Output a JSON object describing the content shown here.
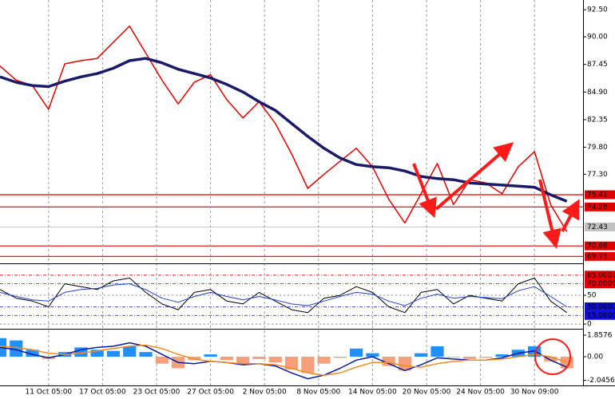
{
  "chart_data": [
    {
      "type": "line",
      "xlim": [
        -0.9,
        9.9
      ],
      "ylim": [
        69.07,
        93.4
      ],
      "x": [
        -0.9,
        -0.6,
        -0.3,
        0.0,
        0.3,
        0.6,
        0.9,
        1.2,
        1.5,
        1.8,
        2.1,
        2.4,
        2.7,
        3.0,
        3.3,
        3.6,
        3.9,
        4.2,
        4.5,
        4.8,
        5.1,
        5.4,
        5.7,
        6.0,
        6.3,
        6.6,
        6.9,
        7.2,
        7.5,
        7.8,
        8.1,
        8.4,
        8.7,
        9.0,
        9.3,
        9.6
      ],
      "yticks": [
        {
          "value": 92.5,
          "label": "92.50"
        },
        {
          "value": 90,
          "label": "90.00"
        },
        87.45,
        {
          "value": 84.9,
          "label": "84.90"
        },
        82.35,
        {
          "value": 79.8,
          "label": "79.80"
        },
        {
          "value": 77.3,
          "label": "77.30"
        }
      ],
      "levels": [
        {
          "value": 75.41,
          "color": "#e00000",
          "text_color": "#ffffff"
        },
        {
          "value": 74.28,
          "color": "#e00000",
          "text_color": "#ffffff"
        },
        {
          "value": 72.43,
          "color": "#c0c0c0",
          "text_color": "#000000"
        },
        {
          "value": 70.68,
          "color": "#e00000",
          "text_color": "#ffffff"
        },
        {
          "value": 69.71,
          "color": "#e00000",
          "text_color": "#ffffff"
        }
      ],
      "series": [
        {
          "color": "#e00000",
          "width": 1.5,
          "values": [
            87.3,
            86.0,
            85.5,
            83.3,
            87.5,
            87.8,
            88.0,
            89.5,
            91.0,
            88.5,
            86.0,
            83.8,
            85.8,
            86.5,
            84.2,
            82.5,
            84.0,
            82.0,
            79.2,
            76.0,
            77.3,
            78.5,
            79.7,
            78.0,
            75.0,
            72.8,
            75.5,
            78.3,
            74.5,
            76.8,
            76.5,
            75.5,
            78.0,
            79.4,
            74.5,
            72.0
          ]
        },
        {
          "color": "#1a1a66",
          "width": 3.5,
          "values": [
            86.3,
            85.8,
            85.5,
            85.4,
            85.9,
            86.3,
            86.6,
            87.1,
            87.8,
            88.0,
            87.6,
            87.0,
            86.6,
            86.2,
            85.6,
            84.9,
            84.0,
            83.2,
            82.0,
            80.8,
            79.7,
            78.8,
            78.2,
            78.0,
            77.9,
            77.6,
            77.1,
            76.9,
            76.8,
            76.5,
            76.4,
            76.3,
            76.2,
            76.1,
            75.4,
            74.8
          ]
        }
      ]
    },
    {
      "type": "line",
      "xlim": [
        -0.9,
        9.9
      ],
      "ylim": [
        -6.8,
        101.4
      ],
      "x": [
        -0.9,
        -0.6,
        -0.3,
        0.0,
        0.3,
        0.6,
        0.9,
        1.2,
        1.5,
        1.8,
        2.1,
        2.4,
        2.7,
        3.0,
        3.3,
        3.6,
        3.9,
        4.2,
        4.5,
        4.8,
        5.1,
        5.4,
        5.7,
        6.0,
        6.3,
        6.6,
        6.9,
        7.2,
        7.5,
        7.8,
        8.1,
        8.4,
        8.7,
        9.0,
        9.3,
        9.6
      ],
      "yticks": [
        50,
        0
      ],
      "levels": [
        {
          "value": 85,
          "label": "85.0000",
          "color": "#e00000",
          "text_color": "#ffffff"
        },
        {
          "value": 70,
          "label": "70.0000",
          "color": "#e00000",
          "text_color": "#ffffff"
        },
        {
          "value": 30,
          "label": "30.0000",
          "color": "#1010d0",
          "text_color": "#ffffff"
        },
        {
          "value": 15,
          "label": "15.0000",
          "color": "#1010d0",
          "text_color": "#ffffff"
        }
      ],
      "series": [
        {
          "color": "#000000",
          "width": 1,
          "values": [
            60,
            45,
            40,
            30,
            70,
            65,
            60,
            75,
            80,
            55,
            35,
            25,
            55,
            60,
            40,
            35,
            55,
            40,
            25,
            20,
            45,
            50,
            65,
            55,
            30,
            20,
            55,
            60,
            35,
            50,
            45,
            40,
            70,
            80,
            40,
            20
          ]
        },
        {
          "color": "#2040d0",
          "width": 1,
          "values": [
            55,
            48,
            42,
            40,
            55,
            60,
            62,
            68,
            70,
            60,
            45,
            38,
            48,
            55,
            48,
            42,
            48,
            42,
            35,
            32,
            40,
            48,
            55,
            52,
            40,
            32,
            45,
            52,
            45,
            48,
            46,
            44,
            58,
            65,
            48,
            30
          ]
        }
      ]
    },
    {
      "type": "histogram-line",
      "xlim": [
        -0.9,
        9.9
      ],
      "ylim": [
        -2.48,
        2.34
      ],
      "x": [
        -0.9,
        -0.6,
        -0.3,
        0.0,
        0.3,
        0.6,
        0.9,
        1.2,
        1.5,
        1.8,
        2.1,
        2.4,
        2.7,
        3.0,
        3.3,
        3.6,
        3.9,
        4.2,
        4.5,
        4.8,
        5.1,
        5.4,
        5.7,
        6.0,
        6.3,
        6.6,
        6.9,
        7.2,
        7.5,
        7.8,
        8.1,
        8.4,
        8.7,
        9.0,
        9.3,
        9.6
      ],
      "yticks": [
        1.8576,
        {
          "value": 0,
          "label": "0.00"
        },
        -2.0456
      ],
      "up_color": "#1e90ff",
      "down_color": "#f5a07a",
      "histogram": [
        1.6,
        1.4,
        0.6,
        -0.2,
        0.4,
        0.8,
        0.6,
        0.5,
        0.9,
        0.4,
        -0.6,
        -1.0,
        -0.3,
        0.2,
        -0.3,
        -0.6,
        -0.2,
        -0.5,
        -1.1,
        -1.4,
        -0.6,
        -0.1,
        0.7,
        0.3,
        -0.8,
        -1.2,
        0.3,
        0.9,
        0.0,
        -0.2,
        -0.1,
        0.2,
        0.6,
        0.9,
        -0.4,
        -1.0
      ],
      "series": [
        {
          "color": "#0a1aa0",
          "width": 1.5,
          "values": [
            0.8,
            0.6,
            0.2,
            -0.1,
            0.2,
            0.6,
            0.8,
            0.9,
            1.2,
            0.9,
            0.2,
            -0.5,
            -0.6,
            -0.4,
            -0.5,
            -0.7,
            -0.6,
            -0.8,
            -1.4,
            -1.9,
            -1.6,
            -1.0,
            -0.3,
            0.0,
            -0.6,
            -1.2,
            -0.7,
            -0.1,
            -0.2,
            -0.3,
            -0.3,
            -0.1,
            0.3,
            0.5,
            -0.3,
            -0.9
          ]
        },
        {
          "color": "#f08c1e",
          "width": 1.5,
          "values": [
            0.9,
            0.8,
            0.6,
            0.3,
            0.2,
            0.3,
            0.5,
            0.7,
            0.9,
            1.0,
            0.7,
            0.2,
            -0.2,
            -0.4,
            -0.5,
            -0.6,
            -0.6,
            -0.7,
            -1.0,
            -1.4,
            -1.6,
            -1.4,
            -0.9,
            -0.5,
            -0.5,
            -0.8,
            -0.9,
            -0.6,
            -0.4,
            -0.3,
            -0.3,
            -0.2,
            0.0,
            0.2,
            0.0,
            -0.5
          ]
        }
      ],
      "xticks": [
        {
          "value": 0,
          "label": "11 Oct 05:00"
        },
        {
          "value": 1,
          "label": "17 Oct 05:00"
        },
        {
          "value": 2,
          "label": "23 Oct 05:00"
        },
        {
          "value": 3,
          "label": "27 Oct 05:00"
        },
        {
          "value": 4,
          "label": "2 Nov 05:00"
        },
        {
          "value": 5,
          "label": "8 Nov 05:00"
        },
        {
          "value": 6,
          "label": "14 Nov 05:00"
        },
        {
          "value": 7,
          "label": "20 Nov 05:00"
        },
        {
          "value": 8,
          "label": "24 Nov 05:00"
        },
        {
          "value": 9,
          "label": "30 Nov 09:00"
        }
      ]
    }
  ]
}
